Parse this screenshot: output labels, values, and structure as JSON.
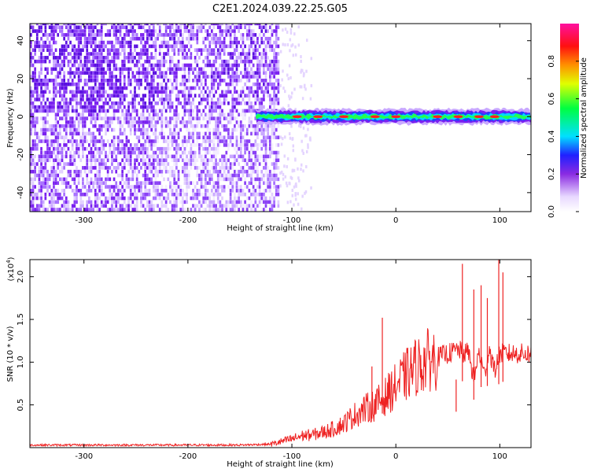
{
  "title": "C2E1.2024.039.22.25.G05",
  "colors": {
    "snr_line": "#ee2222",
    "frame": "#000000",
    "background": "#ffffff"
  },
  "chart_data": [
    {
      "type": "heatmap",
      "name": "spectrogram",
      "xlabel": "Height of straight line (km)",
      "ylabel": "Frequency (Hz)",
      "xlim": [
        -352,
        130
      ],
      "ylim": [
        -50,
        49
      ],
      "xticks": [
        -300,
        -200,
        -100,
        0,
        100
      ],
      "xtick_labels": [
        "-300",
        "-200",
        "-100",
        "0",
        "100"
      ],
      "yticks": [
        -40,
        -20,
        0,
        20,
        40
      ],
      "ytick_labels": [
        "-40",
        "-20",
        "0",
        "20",
        "40"
      ],
      "noise_region_x": [
        -352,
        -112
      ],
      "signal_band": {
        "x_start": -135,
        "x_end": 130,
        "center_hz": 0,
        "hotspots_x": [
          -95,
          -75,
          -50,
          -20,
          0,
          40,
          60,
          80,
          95
        ]
      },
      "colorbar": {
        "label": "Normalized spectral amplitude",
        "range": [
          0.0,
          1.0
        ],
        "ticks": [
          0.0,
          0.2,
          0.4,
          0.6,
          0.8
        ],
        "tick_labels": [
          "0.0",
          "0.2",
          "0.4",
          "0.6",
          "0.8"
        ]
      }
    },
    {
      "type": "line",
      "name": "snr",
      "xlabel": "Height of straight line (km)",
      "ylabel": "SNR (10 * v/v)",
      "y_multiplier": "(x10",
      "y_multiplier_exp": "4",
      "y_multiplier_close": ")",
      "xlim": [
        -352,
        130
      ],
      "ylim": [
        0.0,
        2.2
      ],
      "xticks": [
        -300,
        -200,
        -100,
        0,
        100
      ],
      "xtick_labels": [
        "-300",
        "-200",
        "-100",
        "0",
        "100"
      ],
      "yticks": [
        0.5,
        1.0,
        1.5,
        2.0
      ],
      "ytick_labels": [
        "0.5",
        "1.0",
        "1.5",
        "2.0"
      ],
      "series": [
        {
          "name": "SNR",
          "x": [
            -352,
            -300,
            -250,
            -200,
            -150,
            -120,
            -110,
            -100,
            -90,
            -80,
            -70,
            -60,
            -50,
            -40,
            -30,
            -20,
            -10,
            0,
            10,
            20,
            30,
            40,
            50,
            55,
            60,
            65,
            70,
            75,
            80,
            85,
            90,
            95,
            100,
            105,
            110,
            120,
            130
          ],
          "values": [
            0.03,
            0.03,
            0.03,
            0.03,
            0.03,
            0.04,
            0.07,
            0.1,
            0.14,
            0.15,
            0.18,
            0.22,
            0.28,
            0.38,
            0.45,
            0.5,
            0.6,
            0.72,
            0.85,
            0.95,
            1.02,
            1.06,
            1.1,
            1.12,
            1.15,
            1.1,
            1.12,
            0.8,
            1.12,
            0.85,
            1.15,
            0.9,
            1.1,
            1.1,
            1.1,
            1.1,
            1.1
          ]
        }
      ],
      "spikes": [
        {
          "x": -23,
          "y": 0.95
        },
        {
          "x": -13,
          "y": 1.52
        },
        {
          "x": 58,
          "y": 0.42
        },
        {
          "x": 64,
          "y": 2.15
        },
        {
          "x": 75,
          "y": 1.85
        },
        {
          "x": 82,
          "y": 1.9
        },
        {
          "x": 88,
          "y": 1.75
        },
        {
          "x": 99,
          "y": 2.2
        },
        {
          "x": 103,
          "y": 2.05
        }
      ]
    }
  ]
}
